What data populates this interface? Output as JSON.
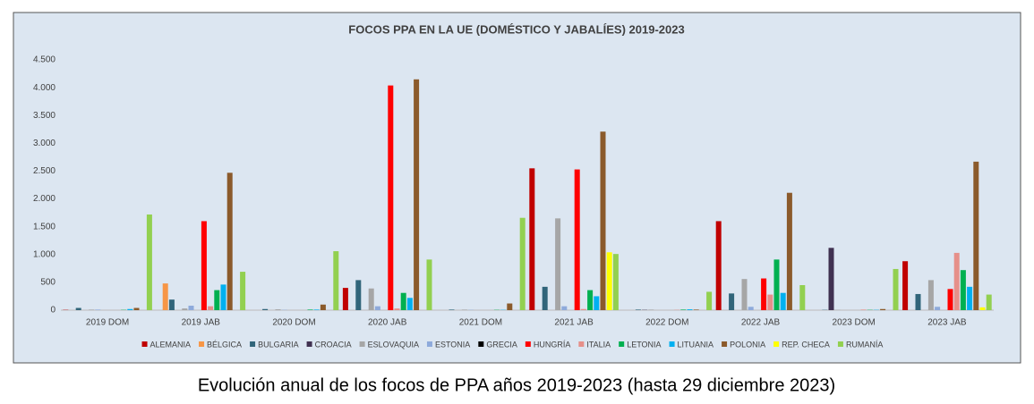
{
  "chart_data": {
    "type": "bar",
    "title": "FOCOS PPA  EN LA UE (DOMÉSTICO Y JABALÍES) 2019-2023",
    "caption": "Evolución anual de los focos de PPA años 2019-2023 (hasta 29 diciembre 2023)",
    "categories": [
      "2019 DOM",
      "2019 JAB",
      "2020 DOM",
      "2020 JAB",
      "2021 DOM",
      "2021 JAB",
      "2022 DOM",
      "2022 JAB",
      "2023 DOM",
      "2023 JAB"
    ],
    "series": [
      {
        "name": "ALEMANIA",
        "color": "#c00000",
        "values": [
          5,
          0,
          0,
          400,
          0,
          2550,
          0,
          1600,
          0,
          880
        ]
      },
      {
        "name": "BÉLGICA",
        "color": "#f79646",
        "values": [
          0,
          480,
          0,
          0,
          0,
          0,
          0,
          0,
          0,
          0
        ]
      },
      {
        "name": "BULGARIA",
        "color": "#31657a",
        "values": [
          40,
          190,
          20,
          540,
          10,
          420,
          10,
          300,
          5,
          290
        ]
      },
      {
        "name": "CROACIA",
        "color": "#403151",
        "values": [
          0,
          0,
          0,
          0,
          0,
          0,
          5,
          0,
          1120,
          0
        ]
      },
      {
        "name": "ESLOVAQUIA",
        "color": "#a6a6a6",
        "values": [
          10,
          30,
          15,
          390,
          10,
          1650,
          10,
          560,
          5,
          540
        ]
      },
      {
        "name": "ESTONIA",
        "color": "#8eaadb",
        "values": [
          10,
          80,
          5,
          70,
          5,
          70,
          0,
          60,
          0,
          60
        ]
      },
      {
        "name": "GRECIA",
        "color": "#000000",
        "values": [
          0,
          0,
          0,
          0,
          0,
          0,
          0,
          0,
          0,
          0
        ]
      },
      {
        "name": "HUNGRÍA",
        "color": "#ff0000",
        "values": [
          0,
          1600,
          0,
          4040,
          0,
          2530,
          0,
          570,
          0,
          380
        ]
      },
      {
        "name": "ITALIA",
        "color": "#e6908a",
        "values": [
          0,
          70,
          0,
          30,
          0,
          20,
          5,
          280,
          10,
          1030
        ]
      },
      {
        "name": "LETONIA",
        "color": "#00b050",
        "values": [
          5,
          360,
          10,
          310,
          5,
          360,
          10,
          910,
          5,
          720
        ]
      },
      {
        "name": "LITUANIA",
        "color": "#00b0f0",
        "values": [
          20,
          460,
          10,
          220,
          5,
          250,
          15,
          310,
          5,
          420
        ]
      },
      {
        "name": "POLONIA",
        "color": "#8b5a2b",
        "values": [
          40,
          2470,
          100,
          4150,
          120,
          3210,
          10,
          2110,
          20,
          2670
        ]
      },
      {
        "name": "REP. CHECA",
        "color": "#ffff00",
        "values": [
          0,
          0,
          0,
          0,
          0,
          1040,
          0,
          0,
          0,
          50
        ]
      },
      {
        "name": "RUMANÍA",
        "color": "#92d050",
        "values": [
          1720,
          690,
          1060,
          910,
          1660,
          1010,
          330,
          450,
          740,
          280
        ]
      }
    ],
    "ylim": [
      0,
      4500
    ],
    "yticks": [
      0,
      500,
      {
        "value": 1000,
        "label": "1.000"
      },
      {
        "value": 1500,
        "label": "1.500"
      },
      {
        "value": 2000,
        "label": "2.000"
      },
      {
        "value": 2500,
        "label": "2.500"
      },
      {
        "value": 3000,
        "label": "3.000"
      },
      {
        "value": 3500,
        "label": "3.500"
      },
      {
        "value": 4000,
        "label": "4.000"
      },
      {
        "value": 4500,
        "label": "4.500"
      }
    ],
    "grid": false
  }
}
